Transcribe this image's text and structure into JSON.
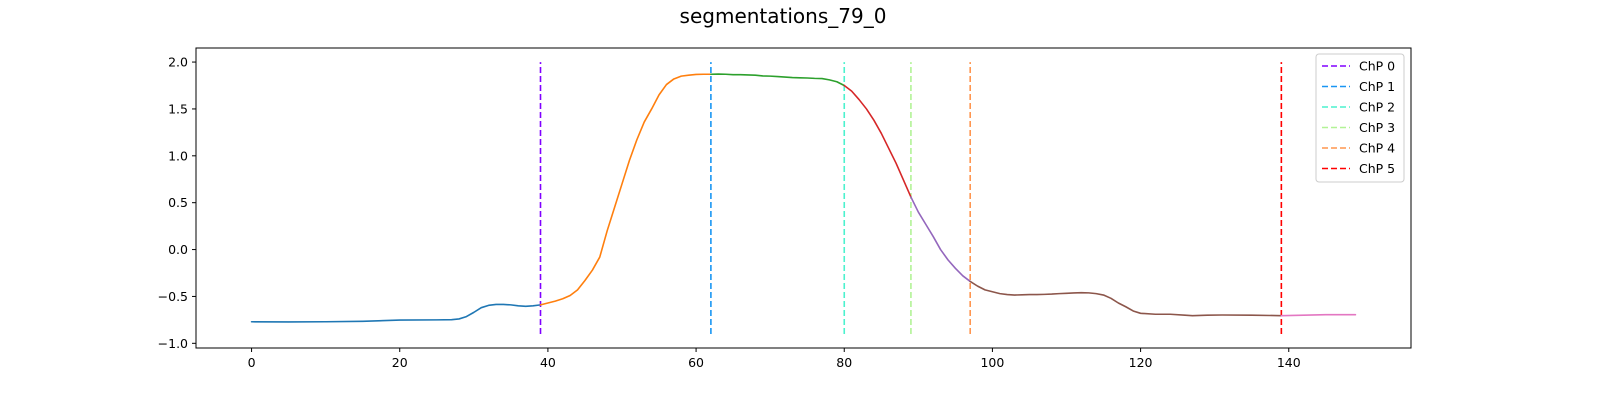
{
  "chart_data": {
    "type": "line",
    "title": "segmentations_79_0",
    "xlabel": "",
    "ylabel": "",
    "xlim": [
      -7.5,
      156.5
    ],
    "ylim": [
      -1.05,
      2.15
    ],
    "xticks": [
      0,
      20,
      40,
      60,
      80,
      100,
      120,
      140
    ],
    "yticks": [
      -1.0,
      -0.5,
      0.0,
      0.5,
      1.0,
      1.5,
      2.0
    ],
    "xtick_labels": [
      "0",
      "20",
      "40",
      "60",
      "80",
      "100",
      "120",
      "140"
    ],
    "ytick_labels": [
      "−1.0",
      "−0.5",
      "0.0",
      "0.5",
      "1.0",
      "1.5",
      "2.0"
    ],
    "grid": false,
    "legend_position": "top-right",
    "segments": [
      {
        "color": "#1f77b4",
        "points": [
          [
            0,
            -0.77
          ],
          [
            5,
            -0.772
          ],
          [
            10,
            -0.77
          ],
          [
            15,
            -0.765
          ],
          [
            20,
            -0.752
          ],
          [
            25,
            -0.75
          ],
          [
            27,
            -0.748
          ],
          [
            28,
            -0.74
          ],
          [
            29,
            -0.715
          ],
          [
            30,
            -0.67
          ],
          [
            31,
            -0.62
          ],
          [
            32,
            -0.595
          ],
          [
            33,
            -0.585
          ],
          [
            34,
            -0.585
          ],
          [
            35,
            -0.59
          ],
          [
            36,
            -0.6
          ],
          [
            37,
            -0.605
          ],
          [
            38,
            -0.6
          ],
          [
            39,
            -0.59
          ]
        ]
      },
      {
        "color": "#ff7f0e",
        "points": [
          [
            39,
            -0.59
          ],
          [
            40,
            -0.57
          ],
          [
            41,
            -0.55
          ],
          [
            42,
            -0.525
          ],
          [
            43,
            -0.49
          ],
          [
            44,
            -0.43
          ],
          [
            45,
            -0.33
          ],
          [
            46,
            -0.22
          ],
          [
            47,
            -0.08
          ],
          [
            48,
            0.2
          ],
          [
            49,
            0.45
          ],
          [
            50,
            0.7
          ],
          [
            51,
            0.95
          ],
          [
            52,
            1.17
          ],
          [
            53,
            1.36
          ],
          [
            54,
            1.5
          ],
          [
            55,
            1.65
          ],
          [
            56,
            1.76
          ],
          [
            57,
            1.82
          ],
          [
            58,
            1.85
          ],
          [
            59,
            1.86
          ],
          [
            60,
            1.868
          ],
          [
            61,
            1.87
          ],
          [
            62,
            1.87
          ]
        ]
      },
      {
        "color": "#2ca02c",
        "points": [
          [
            62,
            1.87
          ],
          [
            63,
            1.872
          ],
          [
            64,
            1.87
          ],
          [
            65,
            1.865
          ],
          [
            66,
            1.865
          ],
          [
            67,
            1.863
          ],
          [
            68,
            1.86
          ],
          [
            69,
            1.852
          ],
          [
            70,
            1.85
          ],
          [
            71,
            1.845
          ],
          [
            72,
            1.84
          ],
          [
            73,
            1.835
          ],
          [
            74,
            1.832
          ],
          [
            75,
            1.83
          ],
          [
            76,
            1.826
          ],
          [
            77,
            1.824
          ],
          [
            78,
            1.81
          ],
          [
            79,
            1.79
          ],
          [
            80,
            1.75
          ]
        ]
      },
      {
        "color": "#d62728",
        "points": [
          [
            80,
            1.75
          ],
          [
            81,
            1.69
          ],
          [
            82,
            1.6
          ],
          [
            83,
            1.5
          ],
          [
            84,
            1.38
          ],
          [
            85,
            1.24
          ],
          [
            86,
            1.08
          ],
          [
            87,
            0.92
          ],
          [
            88,
            0.74
          ],
          [
            89,
            0.56
          ]
        ]
      },
      {
        "color": "#9467bd",
        "points": [
          [
            89,
            0.56
          ],
          [
            90,
            0.4
          ],
          [
            91,
            0.27
          ],
          [
            92,
            0.14
          ],
          [
            93,
            0.0
          ],
          [
            94,
            -0.11
          ],
          [
            95,
            -0.2
          ],
          [
            96,
            -0.28
          ],
          [
            97,
            -0.34
          ]
        ]
      },
      {
        "color": "#8c564b",
        "points": [
          [
            97,
            -0.34
          ],
          [
            98,
            -0.39
          ],
          [
            99,
            -0.43
          ],
          [
            100,
            -0.45
          ],
          [
            101,
            -0.47
          ],
          [
            102,
            -0.48
          ],
          [
            103,
            -0.485
          ],
          [
            104,
            -0.483
          ],
          [
            105,
            -0.48
          ],
          [
            106,
            -0.48
          ],
          [
            107,
            -0.478
          ],
          [
            108,
            -0.475
          ],
          [
            109,
            -0.47
          ],
          [
            110,
            -0.467
          ],
          [
            111,
            -0.463
          ],
          [
            112,
            -0.46
          ],
          [
            113,
            -0.462
          ],
          [
            114,
            -0.47
          ],
          [
            115,
            -0.485
          ],
          [
            116,
            -0.52
          ],
          [
            117,
            -0.57
          ],
          [
            118,
            -0.61
          ],
          [
            119,
            -0.655
          ],
          [
            120,
            -0.68
          ],
          [
            122,
            -0.69
          ],
          [
            124,
            -0.69
          ],
          [
            126,
            -0.7
          ],
          [
            127,
            -0.705
          ],
          [
            129,
            -0.7
          ],
          [
            131,
            -0.698
          ],
          [
            135,
            -0.7
          ],
          [
            139,
            -0.705
          ]
        ]
      },
      {
        "color": "#e377c2",
        "points": [
          [
            139,
            -0.705
          ],
          [
            142,
            -0.7
          ],
          [
            145,
            -0.695
          ],
          [
            149,
            -0.695
          ]
        ]
      }
    ],
    "changepoints": [
      {
        "label": "ChP 0",
        "x": 39,
        "color": "#8000ff",
        "ymin": -0.9,
        "ymax": 2.0
      },
      {
        "label": "ChP 1",
        "x": 62,
        "color": "#1996f3",
        "ymin": -0.9,
        "ymax": 2.0
      },
      {
        "label": "ChP 2",
        "x": 80,
        "color": "#4cf2ce",
        "ymin": -0.9,
        "ymax": 2.0
      },
      {
        "label": "ChP 3",
        "x": 89,
        "color": "#b2f396",
        "ymin": -0.9,
        "ymax": 2.0
      },
      {
        "label": "ChP 4",
        "x": 97,
        "color": "#ff964f",
        "ymin": -0.9,
        "ymax": 2.0
      },
      {
        "label": "ChP 5",
        "x": 139,
        "color": "#ff0000",
        "ymin": -0.9,
        "ymax": 2.0
      }
    ]
  }
}
